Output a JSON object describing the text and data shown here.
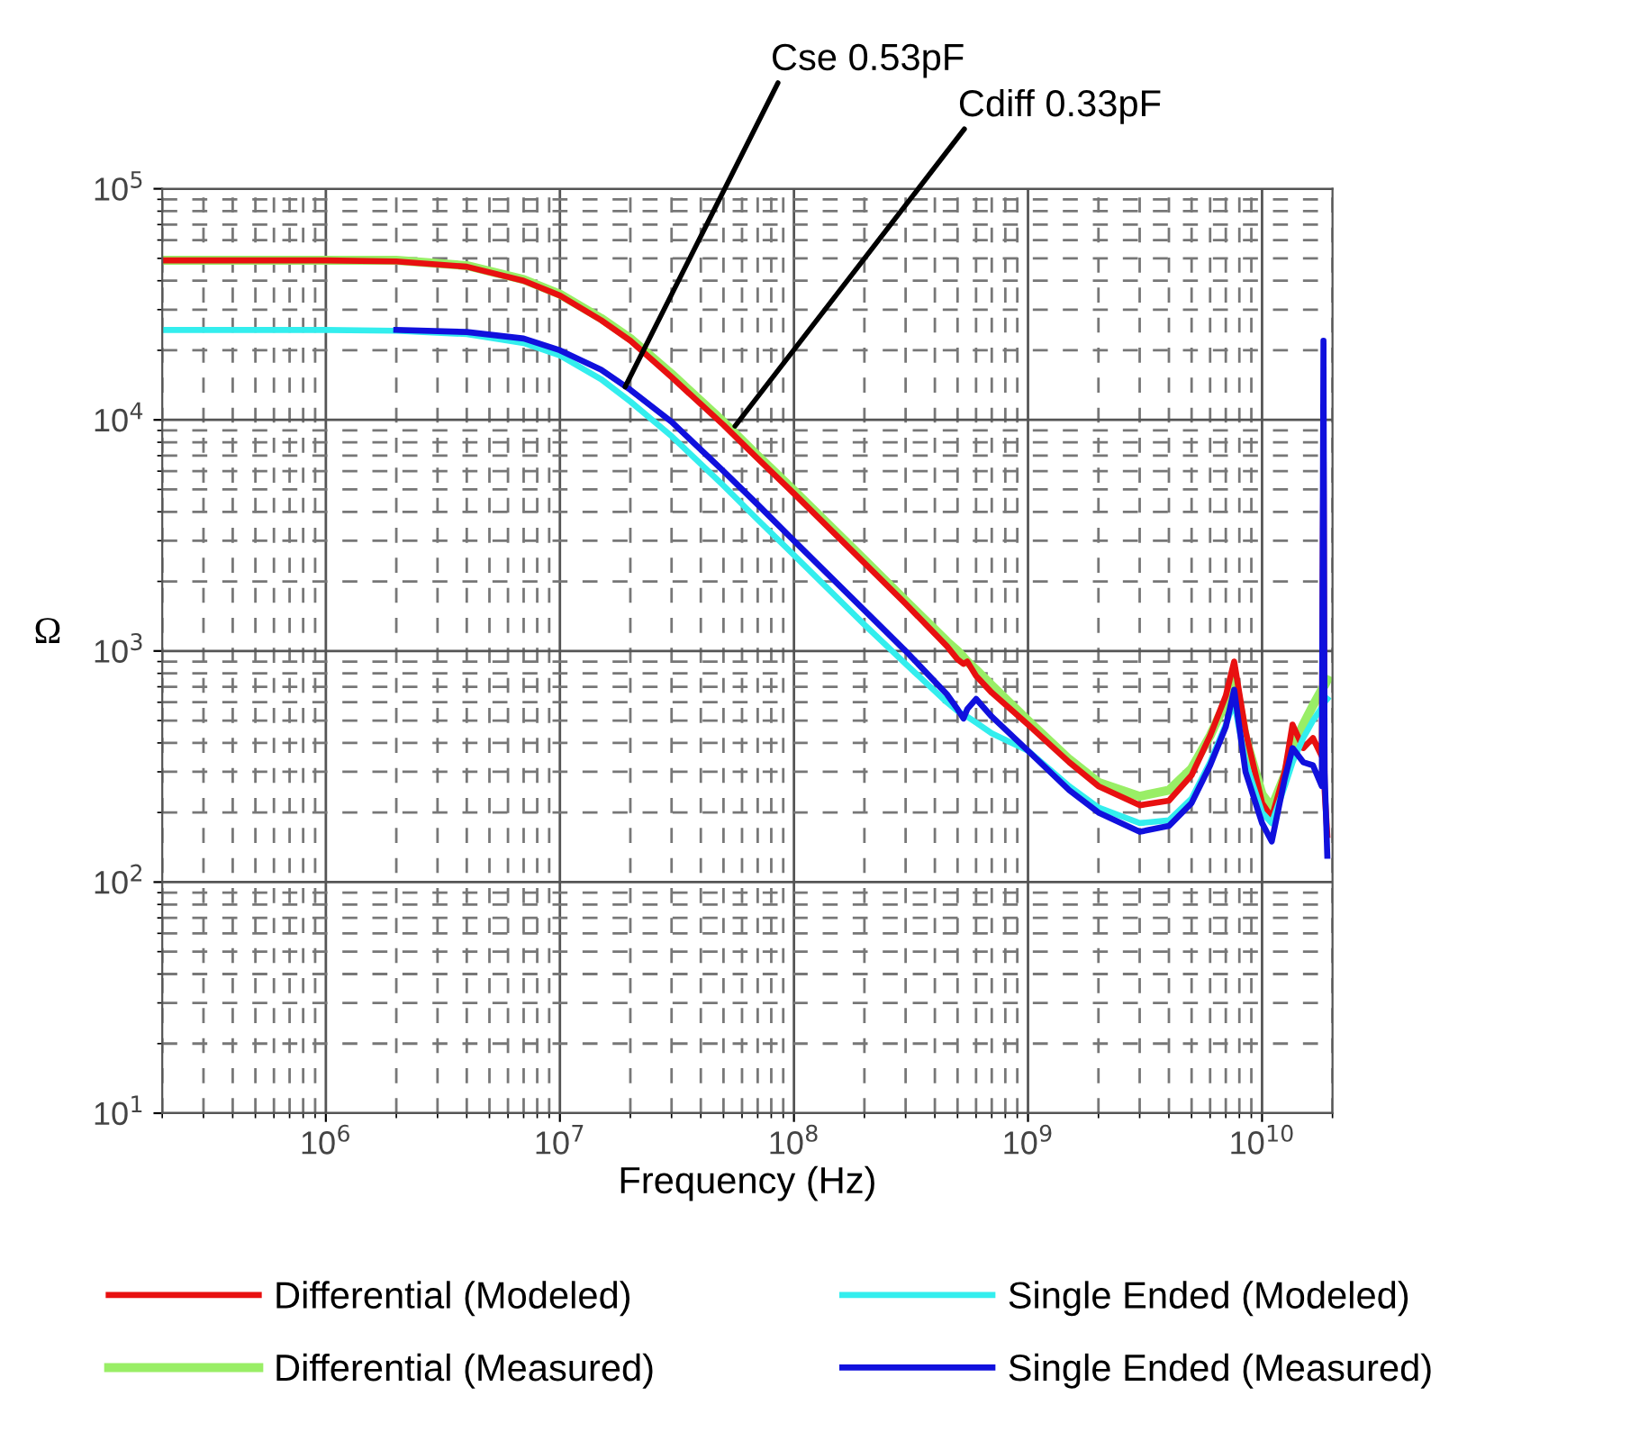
{
  "chart_data": {
    "type": "line",
    "xlabel": "Frequency (Hz)",
    "ylabel": "Ω",
    "log": "xy",
    "grid": true,
    "legend": "bottom",
    "line_style": "solid",
    "marker": "none",
    "xlim": [
      200000,
      20000000000
    ],
    "ylim": [
      10,
      100000
    ],
    "xticks": [
      {
        "value": 1000000,
        "label": "10$^{6}$"
      },
      {
        "value": 10000000,
        "label": "10$^{7}$"
      },
      {
        "value": 100000000,
        "label": "10$^{8}$"
      },
      {
        "value": 1000000000,
        "label": "10$^{9}$"
      },
      {
        "value": 10000000000,
        "label": "10$^{10}$"
      }
    ],
    "yticks": [
      {
        "value": 10,
        "label": "10$^{1}$"
      },
      {
        "value": 100,
        "label": "10$^{2}$"
      },
      {
        "value": 1000,
        "label": "10$^{3}$"
      },
      {
        "value": 10000,
        "label": "10$^{4}$"
      },
      {
        "value": 100000,
        "label": "10$^{5}$"
      }
    ],
    "x": [
      200000,
      1000000,
      2000000,
      4000000,
      7000000,
      10000000,
      15000000,
      20000000,
      30000000,
      50000000,
      70000000,
      100000000,
      200000000,
      300000000,
      450000000,
      500000000,
      530000000,
      550000000,
      600000000,
      700000000,
      1000000000,
      1500000000,
      2000000000,
      3000000000,
      4000000000,
      5000000000,
      6000000000,
      7000000000,
      7600000000,
      8500000000,
      10000000000,
      11000000000,
      12500000000,
      13500000000,
      15000000000,
      16500000000,
      18000000000,
      18300000000,
      18500000000,
      19000000000
    ],
    "series": [
      {
        "name": "Differential (Measured)",
        "color": "#99ee66",
        "values": [
          49000,
          49000,
          49000,
          46500,
          40500,
          35000,
          27500,
          22500,
          15800,
          9800,
          7000,
          4950,
          2480,
          1650,
          1100,
          1000,
          940,
          900,
          830,
          710,
          500,
          340,
          270,
          235,
          250,
          310,
          430,
          600,
          780,
          420,
          240,
          210,
          290,
          380,
          480,
          580,
          680,
          700,
          710,
          750
        ]
      },
      {
        "name": "Differential (Modeled)",
        "color": "#e81010",
        "values": [
          49000,
          49000,
          48500,
          46000,
          40000,
          34500,
          27000,
          22000,
          15300,
          9500,
          6800,
          4800,
          2400,
          1600,
          1050,
          920,
          880,
          900,
          780,
          660,
          480,
          330,
          260,
          215,
          225,
          290,
          430,
          640,
          900,
          450,
          220,
          190,
          300,
          480,
          380,
          420,
          350,
          8000,
          250,
          160
        ]
      },
      {
        "name": "Single Ended (Modeled)",
        "color": "#33eeee",
        "values": [
          24500,
          24500,
          24300,
          23500,
          21500,
          19000,
          15000,
          12000,
          8500,
          5200,
          3700,
          2600,
          1300,
          880,
          600,
          550,
          530,
          520,
          490,
          440,
          370,
          260,
          210,
          180,
          185,
          230,
          330,
          480,
          600,
          330,
          200,
          180,
          260,
          330,
          420,
          500,
          570,
          590,
          600,
          620
        ]
      },
      {
        "name": "Single Ended (Measured)",
        "color": "#1010dd",
        "values": [
          null,
          null,
          24500,
          24000,
          22500,
          20000,
          16500,
          13500,
          9800,
          6000,
          4300,
          3000,
          1500,
          1000,
          650,
          560,
          510,
          560,
          620,
          520,
          370,
          250,
          200,
          165,
          175,
          220,
          320,
          470,
          680,
          300,
          180,
          150,
          280,
          380,
          330,
          320,
          260,
          22000,
          300,
          130
        ]
      }
    ],
    "annotations": [
      {
        "text": "Cse 0.53pF",
        "x": 19000000,
        "y": 13900
      },
      {
        "text": "Cdiff 0.33pF",
        "x": 56000000,
        "y": 9400
      }
    ]
  }
}
